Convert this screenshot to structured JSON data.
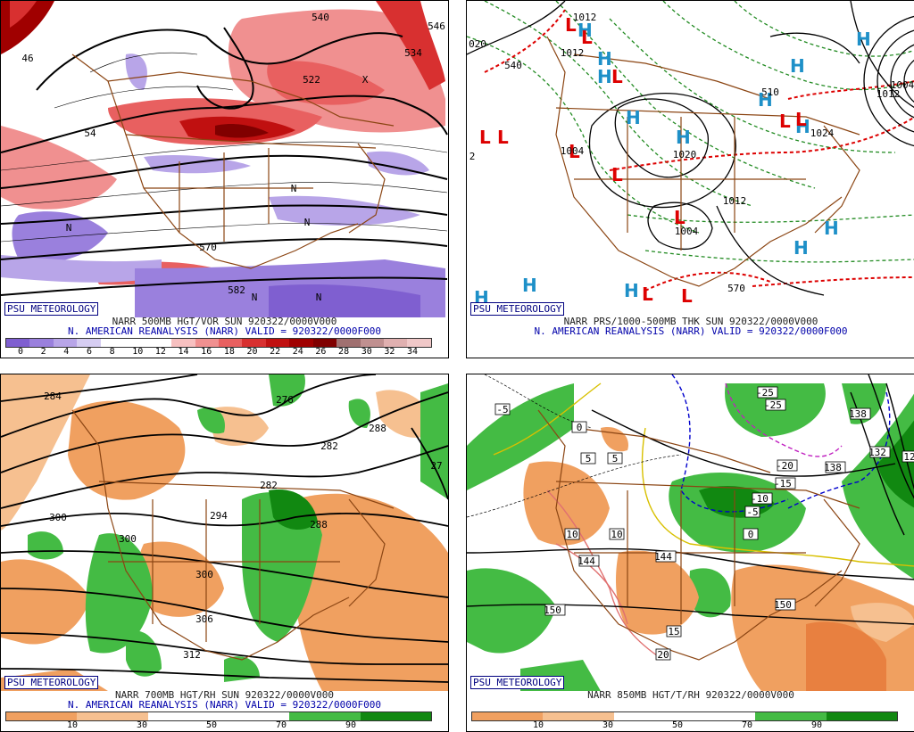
{
  "badge": "PSU METEOROLOGY",
  "panels": [
    {
      "id": "tl",
      "caption_line1": "NARR 500MB HGT/VOR SUN 920322/0000V000",
      "caption_line2": "N. AMERICAN REANALYSIS (NARR) VALID = 920322/0000F000",
      "colorbar_ticks": [
        "0",
        "2",
        "4",
        "6",
        "8",
        "10",
        "12",
        "14",
        "16",
        "18",
        "20",
        "22",
        "24",
        "26",
        "28",
        "30",
        "32",
        "34"
      ],
      "colorbar_colors": [
        "#7f5fd0",
        "#9a80dd",
        "#b8a5e8",
        "#d6cdf2",
        "#ffffff",
        "#ffffff",
        "#ffffff",
        "#f7c0c0",
        "#f09090",
        "#e86060",
        "#d83030",
        "#c01010",
        "#a00000",
        "#800000",
        "#a07070",
        "#c09090",
        "#e0b0b0",
        "#f0c8c8"
      ],
      "labels": [
        "540",
        "546",
        "534",
        "522",
        "46",
        "54",
        "570",
        "582",
        "N",
        "N",
        "N",
        "N",
        "N",
        "X"
      ]
    },
    {
      "id": "tr",
      "caption_line1": "NARR PRS/1000-500MB THK SUN 920322/0000V000",
      "caption_line2": "N. AMERICAN REANALYSIS (NARR) VALID = 920322/0000F000",
      "labels": [
        "1012",
        "1012",
        "1020",
        "1004",
        "1004",
        "1012",
        "1012",
        "1024",
        "1004",
        "540",
        "570",
        "510",
        "020",
        "2"
      ],
      "highs": [
        "H",
        "H",
        "H",
        "H",
        "H",
        "H",
        "H",
        "H",
        "H",
        "H",
        "H",
        "H",
        "H",
        "H"
      ],
      "lows": [
        "L",
        "L",
        "L",
        "L",
        "L",
        "L",
        "L",
        "L",
        "L",
        "L",
        "L",
        "L"
      ]
    },
    {
      "id": "bl",
      "caption_line1": "NARR 700MB HGT/RH SUN 920322/0000V000",
      "caption_line2": "N. AMERICAN REANALYSIS (NARR) VALID = 920322/0000F000",
      "colorbar_ticks": [
        "10",
        "30",
        "50",
        "70",
        "90"
      ],
      "colorbar_colors": [
        "#f0a060",
        "#f6c090",
        "#ffffff",
        "#ffffff",
        "#44bb44",
        "#118811"
      ],
      "labels": [
        "284",
        "276",
        "282",
        "288",
        "282",
        "288",
        "300",
        "300",
        "294",
        "300",
        "306",
        "312",
        "27"
      ]
    },
    {
      "id": "br",
      "caption_line1": "NARR 850MB HGT/T/RH 920322/0000V000",
      "colorbar_ticks": [
        "10",
        "30",
        "50",
        "70",
        "90"
      ],
      "colorbar_colors": [
        "#f0a060",
        "#f6c090",
        "#ffffff",
        "#ffffff",
        "#44bb44",
        "#118811"
      ],
      "labels": [
        "-5",
        "0",
        "5",
        "5",
        "-25",
        "-25",
        "-20",
        "-15",
        "-10",
        "-5",
        "0",
        "10",
        "10",
        "15",
        "20",
        "144",
        "144",
        "150",
        "150",
        "138",
        "132",
        "138",
        "12"
      ]
    }
  ]
}
